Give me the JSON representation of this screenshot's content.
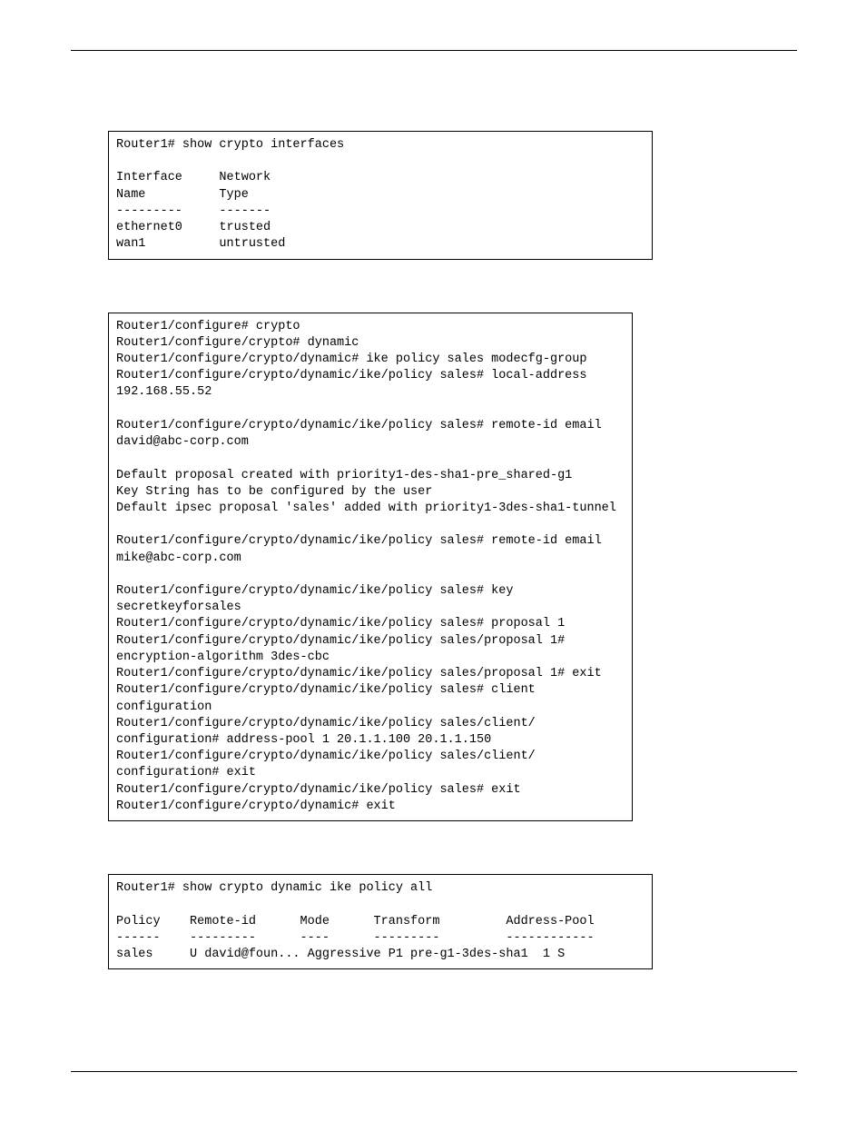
{
  "box1": {
    "title": "Router1# show crypto interfaces",
    "rows": [
      "Interface     Network",
      "Name          Type",
      "---------     -------",
      "ethernet0     trusted",
      "wan1          untrusted"
    ]
  },
  "box2": {
    "lines": [
      "Router1/configure# crypto",
      "Router1/configure/crypto# dynamic",
      "Router1/configure/crypto/dynamic# ike policy sales modecfg-group",
      "Router1/configure/crypto/dynamic/ike/policy sales# local-address",
      "192.168.55.52",
      "",
      "Router1/configure/crypto/dynamic/ike/policy sales# remote-id email",
      "david@abc-corp.com",
      "",
      "Default proposal created with priority1-des-sha1-pre_shared-g1",
      "Key String has to be configured by the user",
      "Default ipsec proposal 'sales' added with priority1-3des-sha1-tunnel",
      "",
      "Router1/configure/crypto/dynamic/ike/policy sales# remote-id email",
      "mike@abc-corp.com",
      "",
      "Router1/configure/crypto/dynamic/ike/policy sales# key",
      "secretkeyforsales",
      "Router1/configure/crypto/dynamic/ike/policy sales# proposal 1",
      "Router1/configure/crypto/dynamic/ike/policy sales/proposal 1#",
      "encryption-algorithm 3des-cbc",
      "Router1/configure/crypto/dynamic/ike/policy sales/proposal 1# exit",
      "Router1/configure/crypto/dynamic/ike/policy sales# client",
      "configuration",
      "Router1/configure/crypto/dynamic/ike/policy sales/client/",
      "configuration# address-pool 1 20.1.1.100 20.1.1.150",
      "Router1/configure/crypto/dynamic/ike/policy sales/client/",
      "configuration# exit",
      "Router1/configure/crypto/dynamic/ike/policy sales# exit",
      "Router1/configure/crypto/dynamic# exit"
    ]
  },
  "box3": {
    "title": "Router1# show crypto dynamic ike policy all",
    "rows": [
      "Policy    Remote-id      Mode      Transform         Address-Pool",
      "------    ---------      ----      ---------         ------------",
      "sales     U david@foun... Aggressive P1 pre-g1-3des-sha1  1 S"
    ]
  }
}
